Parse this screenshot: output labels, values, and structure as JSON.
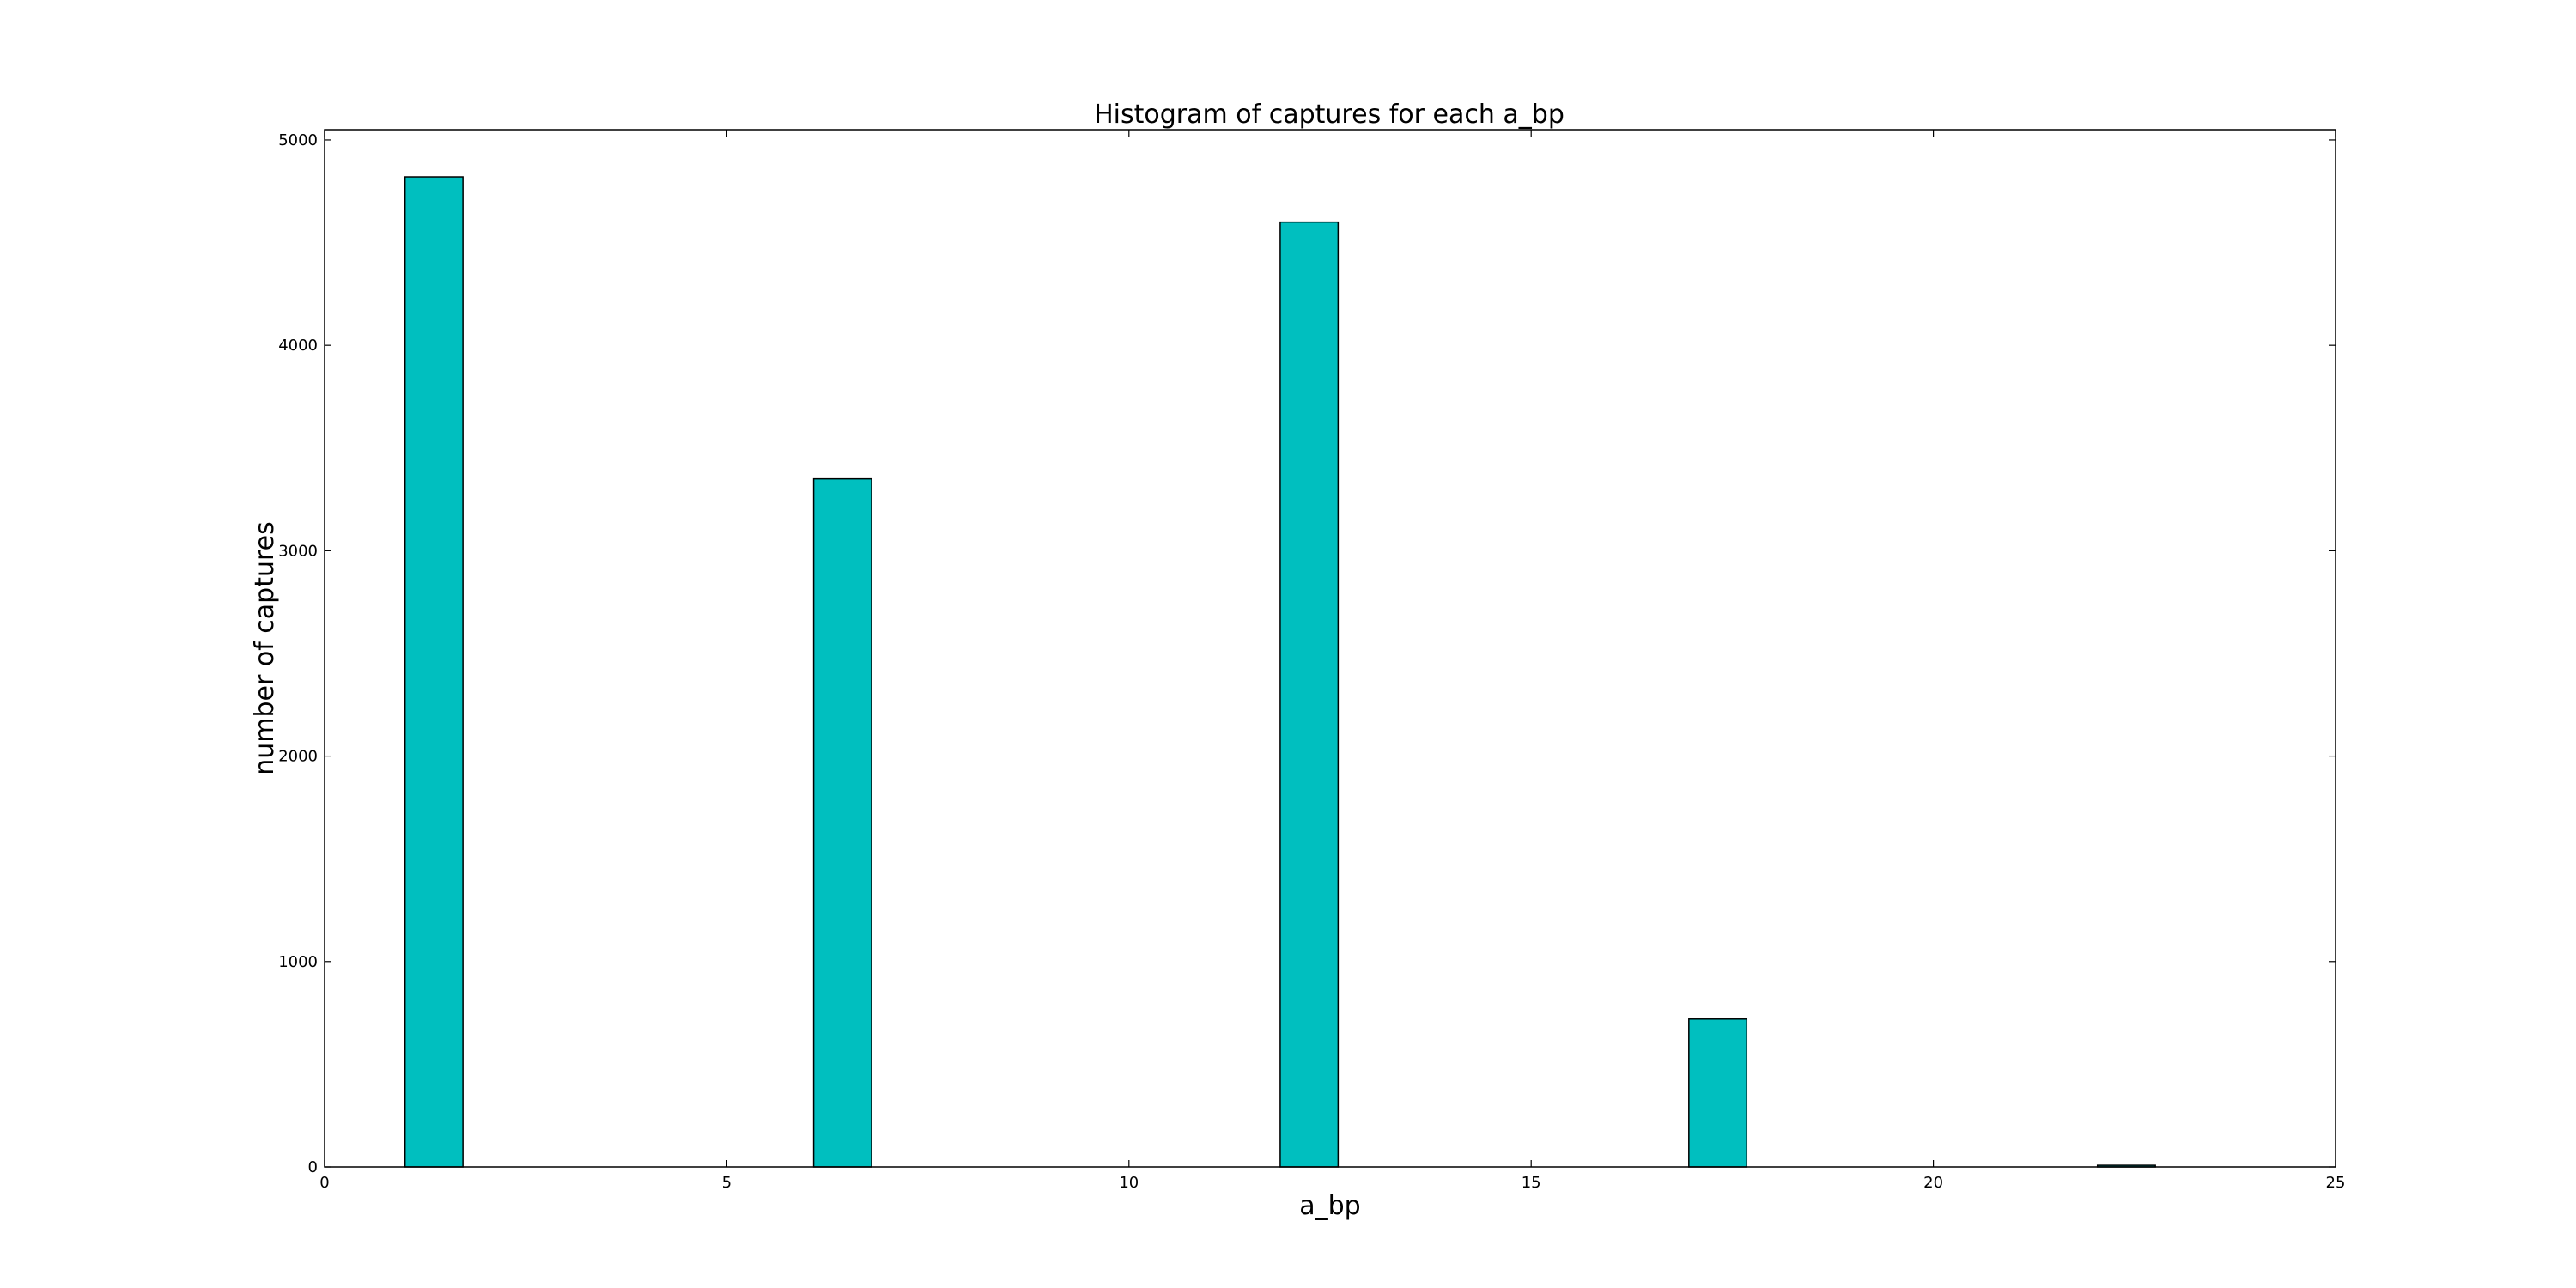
{
  "chart_data": {
    "type": "bar",
    "title": "Histogram of captures for each a_bp",
    "xlabel": "a_bp",
    "ylabel": "number of captures",
    "xlim": [
      0,
      25
    ],
    "ylim": [
      0,
      5050
    ],
    "xticks": [
      0,
      5,
      10,
      15,
      20,
      25
    ],
    "yticks": [
      0,
      1000,
      2000,
      3000,
      4000,
      5000
    ],
    "grid": false,
    "bar_color": "#00bfbf",
    "edge_color": "#000000",
    "bins": [
      {
        "x0": 1.0,
        "x1": 1.72,
        "value": 4820
      },
      {
        "x0": 6.08,
        "x1": 6.8,
        "value": 3350
      },
      {
        "x0": 11.88,
        "x1": 12.6,
        "value": 4600
      },
      {
        "x0": 16.96,
        "x1": 17.68,
        "value": 720
      },
      {
        "x0": 22.04,
        "x1": 22.76,
        "value": 8
      }
    ]
  }
}
